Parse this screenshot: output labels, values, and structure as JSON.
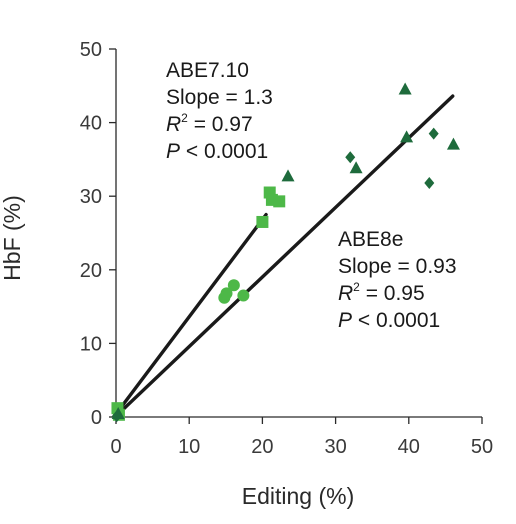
{
  "chart_data": {
    "type": "scatter",
    "xlabel": "Editing (%)",
    "ylabel": "HbF (%)",
    "xlim": [
      0,
      50
    ],
    "ylim": [
      0,
      50
    ],
    "xticks": [
      0,
      10,
      20,
      30,
      40,
      50
    ],
    "yticks": [
      0,
      10,
      20,
      30,
      40,
      50
    ],
    "x_tick_labels": [
      "0",
      "10",
      "20",
      "30",
      "40",
      "50"
    ],
    "y_tick_labels": [
      "0",
      "10",
      "20",
      "30",
      "40",
      "50"
    ],
    "grid": false,
    "series": [
      {
        "name": "ABE7.10",
        "color": "#4db848",
        "markers": [
          {
            "shape": "square",
            "points": [
              [
                0.2,
                1.2
              ],
              [
                0.4,
                0.3
              ],
              [
                20.0,
                26.5
              ],
              [
                21.0,
                30.5
              ],
              [
                21.3,
                29.5
              ],
              [
                22.3,
                29.3
              ]
            ]
          },
          {
            "shape": "circle",
            "points": [
              [
                14.8,
                16.2
              ],
              [
                15.1,
                16.8
              ],
              [
                16.1,
                17.9
              ],
              [
                17.4,
                16.5
              ]
            ]
          }
        ],
        "fit_line": {
          "x": [
            0.3,
            20.5
          ],
          "y": [
            0.8,
            27.5
          ]
        },
        "annotation": {
          "name": "ABE7.10",
          "slope": "Slope = 1.3",
          "r2_prefix": "R",
          "r2_sup": "2",
          "r2_value": " = 0.97",
          "p_prefix": "P",
          "p_value": " < 0.0001"
        }
      },
      {
        "name": "ABE8e",
        "color": "#1e6b3c",
        "markers": [
          {
            "shape": "triangle",
            "points": [
              [
                0.3,
                0.4
              ],
              [
                23.5,
                32.7
              ],
              [
                32.8,
                33.8
              ],
              [
                39.5,
                44.5
              ],
              [
                39.7,
                38.0
              ],
              [
                46.1,
                37.0
              ]
            ]
          },
          {
            "shape": "diamond",
            "points": [
              [
                0.1,
                0.1
              ],
              [
                32.0,
                35.3
              ],
              [
                42.8,
                31.8
              ],
              [
                43.4,
                38.5
              ]
            ]
          }
        ],
        "fit_line": {
          "x": [
            0.3,
            46.0
          ],
          "y": [
            0.4,
            43.6
          ]
        },
        "annotation": {
          "name": "ABE8e",
          "slope": "Slope = 0.93",
          "r2_prefix": "R",
          "r2_sup": "2",
          "r2_value": " = 0.95",
          "p_prefix": "P",
          "p_value": " < 0.0001"
        }
      }
    ]
  }
}
